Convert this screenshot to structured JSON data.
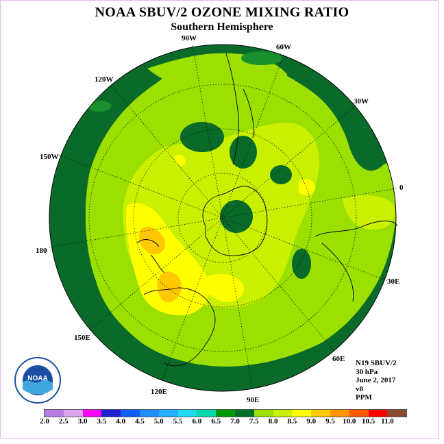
{
  "title": "NOAA SBUV/2 OZONE MIXING RATIO",
  "subtitle": "Southern Hemisphere",
  "longitude_labels": {
    "lon_90w": "90W",
    "lon_60w": "60W",
    "lon_30w": "30W",
    "lon_0": "0",
    "lon_30e": "30E",
    "lon_60e": "60E",
    "lon_90e": "90E",
    "lon_120e": "120E",
    "lon_150e": "150E",
    "lon_180": "180",
    "lon_150w": "150W",
    "lon_120w": "120W"
  },
  "info": {
    "satellite": "N19 SBUV/2",
    "pressure": "30 hPa",
    "date": "June 2, 2017",
    "version": "v8",
    "units": "PPM"
  },
  "logo": {
    "text": "NOAA"
  },
  "colorbar": {
    "ticks": [
      "2.0",
      "2.5",
      "3.0",
      "3.5",
      "4.0",
      "4.5",
      "5.0",
      "5.5",
      "6.0",
      "6.5",
      "7.0",
      "7.5",
      "8.0",
      "8.5",
      "9.0",
      "9.5",
      "10.0",
      "10.5",
      "11.0"
    ],
    "colors": [
      "#b87ee6",
      "#d9a3f0",
      "#ff00ff",
      "#2020d0",
      "#1060ff",
      "#1e90ff",
      "#20b0ff",
      "#20d8f0",
      "#00d8b0",
      "#009900",
      "#006f2c",
      "#9be000",
      "#c8f000",
      "#ffff00",
      "#ffc800",
      "#ff9600",
      "#ff5a00",
      "#ff0000",
      "#8b4a2b"
    ]
  },
  "colors": {
    "level_6_5": "#1a8f2e",
    "level_7_0": "#0a6a2a",
    "level_7_5": "#9be000",
    "level_8_0": "#c8f000",
    "level_8_5": "#ffff00",
    "level_9_0": "#ffc800",
    "level_9_5": "#ff9600"
  }
}
